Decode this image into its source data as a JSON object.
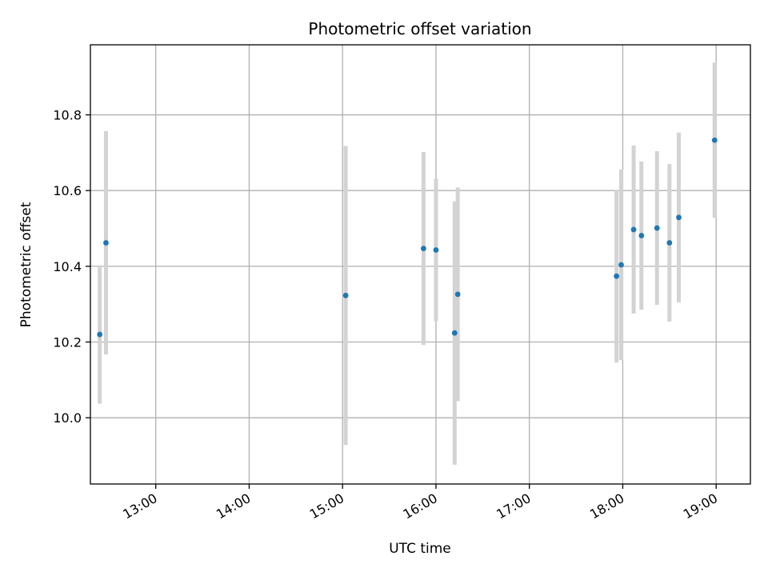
{
  "chart_data": {
    "type": "scatter",
    "title": "Photometric offset variation",
    "xlabel": "UTC time",
    "ylabel": "Photometric offset",
    "xlim": [
      "12:18",
      "19:22"
    ],
    "ylim": [
      9.825,
      10.985
    ],
    "x_ticks": [
      "13:00",
      "14:00",
      "15:00",
      "16:00",
      "17:00",
      "18:00",
      "19:00"
    ],
    "y_ticks": [
      10.0,
      10.2,
      10.4,
      10.6,
      10.8
    ],
    "y_tick_labels": [
      "10.0",
      "10.2",
      "10.4",
      "10.6",
      "10.8"
    ],
    "grid": true,
    "marker_color": "#1f77b4",
    "errorbar_color": "#d3d3d3",
    "points": [
      {
        "x": "12:24",
        "y": 10.22,
        "yerr": 0.183
      },
      {
        "x": "12:28",
        "y": 10.462,
        "yerr": 0.295
      },
      {
        "x": "15:02",
        "y": 10.323,
        "yerr": 0.395
      },
      {
        "x": "15:52",
        "y": 10.447,
        "yerr": 0.255
      },
      {
        "x": "16:00",
        "y": 10.443,
        "yerr": 0.188
      },
      {
        "x": "16:12",
        "y": 10.224,
        "yerr": 0.348
      },
      {
        "x": "16:14",
        "y": 10.326,
        "yerr": 0.282
      },
      {
        "x": "17:56",
        "y": 10.374,
        "yerr": 0.228
      },
      {
        "x": "17:59",
        "y": 10.404,
        "yerr": 0.252
      },
      {
        "x": "18:07",
        "y": 10.497,
        "yerr": 0.222
      },
      {
        "x": "18:12",
        "y": 10.481,
        "yerr": 0.196
      },
      {
        "x": "18:22",
        "y": 10.501,
        "yerr": 0.203
      },
      {
        "x": "18:30",
        "y": 10.462,
        "yerr": 0.208
      },
      {
        "x": "18:36",
        "y": 10.529,
        "yerr": 0.224
      },
      {
        "x": "18:59",
        "y": 10.733,
        "yerr": 0.205
      }
    ]
  }
}
